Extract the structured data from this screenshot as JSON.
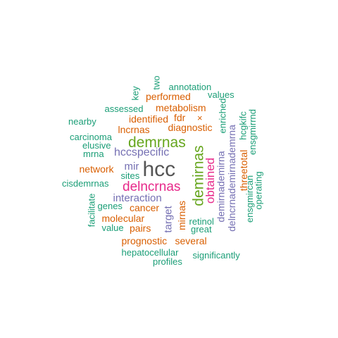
{
  "palette": {
    "teal": "#1b9e77",
    "orange": "#d95f02",
    "purple": "#7570b3",
    "magenta": "#e7298a",
    "green": "#66a61e",
    "gray": "#555555"
  },
  "words": [
    {
      "text": "hcc",
      "color": "gray",
      "weight": 10,
      "vertical": false
    },
    {
      "text": "demrnas",
      "color": "green",
      "weight": 7,
      "vertical": false
    },
    {
      "text": "demirnas",
      "color": "green",
      "weight": 7,
      "vertical": true
    },
    {
      "text": "delncrnas",
      "color": "magenta",
      "weight": 6,
      "vertical": false
    },
    {
      "text": "obtained",
      "color": "magenta",
      "weight": 5,
      "vertical": true
    },
    {
      "text": "hccspecific",
      "color": "purple",
      "weight": 4,
      "vertical": false
    },
    {
      "text": "interaction",
      "color": "purple",
      "weight": 4,
      "vertical": false
    },
    {
      "text": "mir",
      "color": "purple",
      "weight": 4,
      "vertical": false
    },
    {
      "text": "target",
      "color": "purple",
      "weight": 4,
      "vertical": true
    },
    {
      "text": "demirnademirna",
      "color": "purple",
      "weight": 3,
      "vertical": true
    },
    {
      "text": "delncrnademirnademrna",
      "color": "purple",
      "weight": 3,
      "vertical": true
    },
    {
      "text": "performed",
      "color": "orange",
      "weight": 3,
      "vertical": false
    },
    {
      "text": "metabolism",
      "color": "orange",
      "weight": 3,
      "vertical": false
    },
    {
      "text": "identified",
      "color": "orange",
      "weight": 3,
      "vertical": false
    },
    {
      "text": "fdr",
      "color": "orange",
      "weight": 3,
      "vertical": false
    },
    {
      "text": "lncrnas",
      "color": "orange",
      "weight": 3,
      "vertical": false
    },
    {
      "text": "diagnostic",
      "color": "orange",
      "weight": 3,
      "vertical": false
    },
    {
      "text": "network",
      "color": "orange",
      "weight": 3,
      "vertical": false
    },
    {
      "text": "cancer",
      "color": "orange",
      "weight": 3,
      "vertical": false
    },
    {
      "text": "molecular",
      "color": "orange",
      "weight": 3,
      "vertical": false
    },
    {
      "text": "pairs",
      "color": "orange",
      "weight": 3,
      "vertical": false
    },
    {
      "text": "prognostic",
      "color": "orange",
      "weight": 3,
      "vertical": false
    },
    {
      "text": "several",
      "color": "orange",
      "weight": 3,
      "vertical": false
    },
    {
      "text": "mirnas",
      "color": "orange",
      "weight": 3,
      "vertical": true
    },
    {
      "text": "threetotal",
      "color": "orange",
      "weight": 3,
      "vertical": true
    },
    {
      "text": "×",
      "color": "orange",
      "weight": 2,
      "vertical": false
    },
    {
      "text": "annotation",
      "color": "teal",
      "weight": 2,
      "vertical": false
    },
    {
      "text": "two",
      "color": "teal",
      "weight": 2,
      "vertical": true
    },
    {
      "text": "key",
      "color": "teal",
      "weight": 2,
      "vertical": true
    },
    {
      "text": "values",
      "color": "teal",
      "weight": 2,
      "vertical": false
    },
    {
      "text": "assessed",
      "color": "teal",
      "weight": 2,
      "vertical": false
    },
    {
      "text": "enriched",
      "color": "teal",
      "weight": 2,
      "vertical": true
    },
    {
      "text": "nearby",
      "color": "teal",
      "weight": 2,
      "vertical": false
    },
    {
      "text": "hcgkifc",
      "color": "teal",
      "weight": 2,
      "vertical": true
    },
    {
      "text": "carcinoma",
      "color": "teal",
      "weight": 2,
      "vertical": false
    },
    {
      "text": "elusive",
      "color": "teal",
      "weight": 2,
      "vertical": false
    },
    {
      "text": "mrna",
      "color": "teal",
      "weight": 2,
      "vertical": false
    },
    {
      "text": "ensgmirrnd",
      "color": "teal",
      "weight": 2,
      "vertical": true
    },
    {
      "text": "sites",
      "color": "teal",
      "weight": 2,
      "vertical": false
    },
    {
      "text": "cisdemrnas",
      "color": "teal",
      "weight": 2,
      "vertical": false
    },
    {
      "text": "genes",
      "color": "teal",
      "weight": 2,
      "vertical": false
    },
    {
      "text": "facilitate",
      "color": "teal",
      "weight": 2,
      "vertical": true
    },
    {
      "text": "value",
      "color": "teal",
      "weight": 2,
      "vertical": false
    },
    {
      "text": "retinol",
      "color": "teal",
      "weight": 2,
      "vertical": false
    },
    {
      "text": "great",
      "color": "teal",
      "weight": 2,
      "vertical": false
    },
    {
      "text": "ensgmircan",
      "color": "teal",
      "weight": 2,
      "vertical": true
    },
    {
      "text": "operating",
      "color": "teal",
      "weight": 2,
      "vertical": true
    },
    {
      "text": "hepatocellular",
      "color": "teal",
      "weight": 2,
      "vertical": false
    },
    {
      "text": "significantly",
      "color": "teal",
      "weight": 2,
      "vertical": false
    },
    {
      "text": "profiles",
      "color": "teal",
      "weight": 2,
      "vertical": false
    }
  ]
}
